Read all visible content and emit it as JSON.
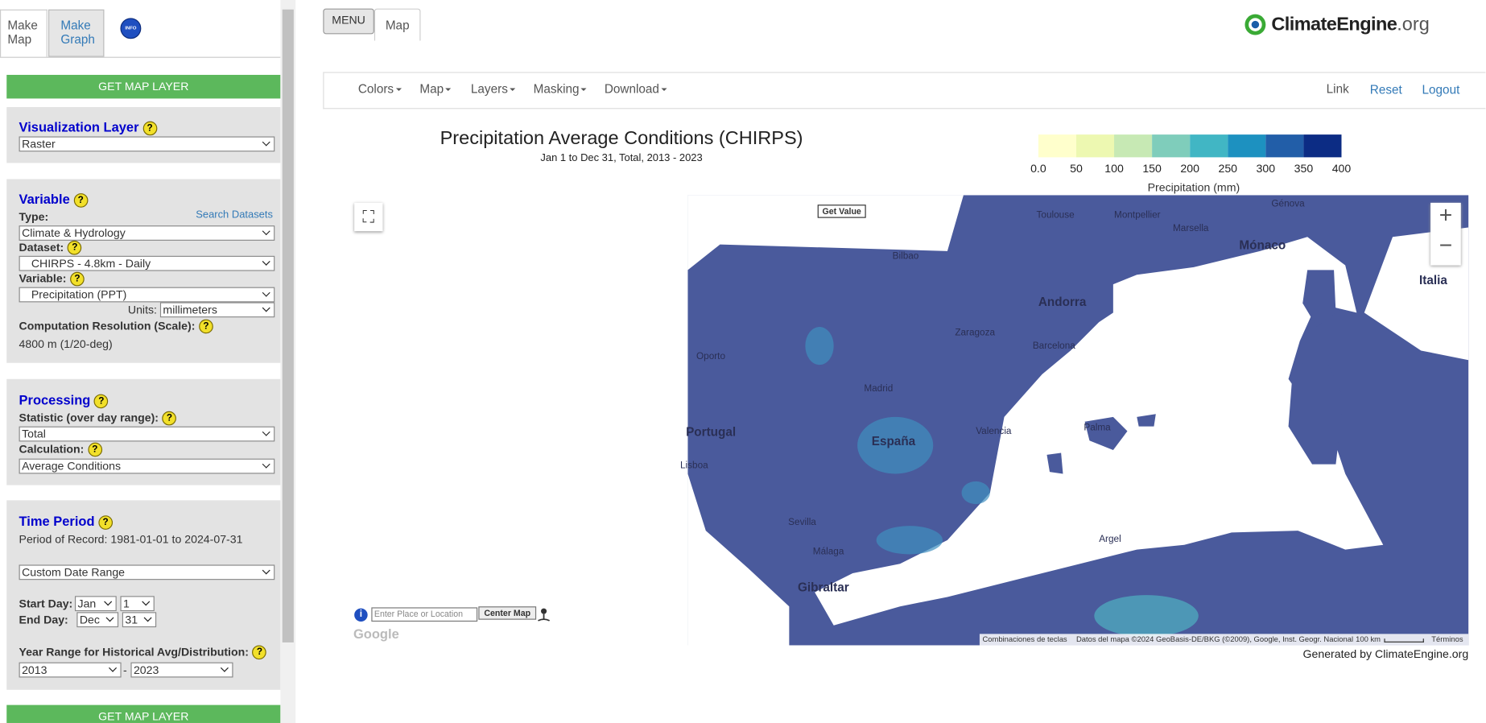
{
  "tabs": {
    "make_map": "Make Map",
    "make_graph": "Make Graph",
    "info": "INFO"
  },
  "help": "?",
  "sidebar": {
    "get_map_layer": "GET MAP LAYER",
    "visualization": {
      "title": "Visualization Layer",
      "select": "Raster"
    },
    "variable": {
      "title": "Variable",
      "search": "Search Datasets",
      "type_label": "Type:",
      "type": "Climate & Hydrology",
      "dataset_label": "Dataset:",
      "dataset": "CHIRPS - 4.8km - Daily",
      "variable_label": "Variable:",
      "variable": "Precipitation (PPT)",
      "units_label": "Units:",
      "units": "millimeters",
      "resolution_label": "Computation Resolution (Scale):",
      "resolution": "4800 m (1/20-deg)"
    },
    "processing": {
      "title": "Processing",
      "statistic_label": "Statistic (over day range):",
      "statistic": "Total",
      "calculation_label": "Calculation:",
      "calculation": "Average Conditions"
    },
    "time_period": {
      "title": "Time Period",
      "record": "Period of Record: 1981-01-01 to 2024-07-31",
      "range": "Custom Date Range",
      "start_label": "Start Day:",
      "start_month": "Jan",
      "start_day": "1",
      "end_label": "End Day:",
      "end_month": "Dec",
      "end_day": "31",
      "year_label": "Year Range for Historical Avg/Distribution:",
      "year_start": "2013",
      "dash": "-",
      "year_end": "2023"
    }
  },
  "header": {
    "menu": "MENU",
    "map_tab": "Map",
    "logo": "ClimateEngine",
    "logo_suffix": ".org"
  },
  "nav": {
    "left": [
      "Colors",
      "Map",
      "Layers",
      "Masking",
      "Download"
    ],
    "right": [
      "Link",
      "Reset",
      "Logout"
    ]
  },
  "map": {
    "title": "Precipitation Average Conditions (CHIRPS)",
    "subtitle": "Jan 1 to Dec 31, Total, 2013 - 2023",
    "legend": {
      "colors": [
        "#ffffcc",
        "#edf8b1",
        "#c7e9b4",
        "#7fcdbb",
        "#41b6c4",
        "#1d91c0",
        "#225ea8",
        "#0c2c84"
      ],
      "ticks": [
        "0.0",
        "50",
        "100",
        "150",
        "200",
        "250",
        "300",
        "350",
        "400"
      ],
      "label": "Precipitation (mm)"
    },
    "land_color": "#4a5a9c",
    "get_value": "Get Value",
    "zoom_in": "+",
    "zoom_out": "−",
    "search_placeholder": "Enter Place or Location",
    "center": "Center Map",
    "google": "Google",
    "attribution": [
      "Combinaciones de teclas",
      "Datos del mapa ©2024 GeoBasis-DE/BKG (©2009), Google, Inst. Geogr. Nacional",
      "100 km",
      "Términos"
    ],
    "places": [
      "Portugal",
      "España",
      "Madrid",
      "Andorra",
      "Zaragoza",
      "Barcelona",
      "Valencia",
      "Sevilla",
      "Málaga",
      "Gibraltar",
      "Lisboa",
      "Oporto",
      "Argel",
      "Toulouse",
      "Montpellier",
      "Marsella",
      "Mónaco",
      "Palma",
      "Bilbao",
      "Génova",
      "Italia"
    ],
    "generated": "Generated by ClimateEngine.org"
  }
}
